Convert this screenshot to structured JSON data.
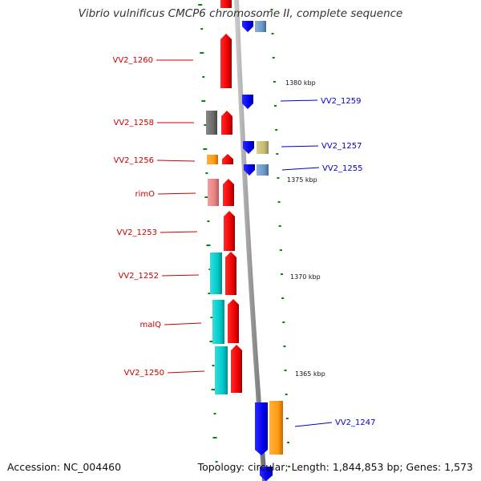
{
  "title": "Vibrio vulnificus CMCP6 chromosome II, complete sequence",
  "footer": {
    "accession": "Accession: NC_004460",
    "topology": "Topology: circular; Length: 1,844,853 bp; Genes: 1,573"
  },
  "colors": {
    "forward_label": "#cc0000",
    "reverse_label": "#0000cc",
    "tick": "#008800",
    "backbone": "#999999"
  },
  "kbp_labels": [
    "1380 kbp",
    "1375 kbp",
    "1370 kbp",
    "1365 kbp"
  ],
  "genes_left": [
    {
      "label": "VV2_1260",
      "color": "red"
    },
    {
      "label": "VV2_1258",
      "color": "red"
    },
    {
      "label": "VV2_1256",
      "color": "red"
    },
    {
      "label": "rimO",
      "color": "red"
    },
    {
      "label": "VV2_1253",
      "color": "red"
    },
    {
      "label": "VV2_1252",
      "color": "red"
    },
    {
      "label": "malQ",
      "color": "red"
    },
    {
      "label": "VV2_1250",
      "color": "red"
    }
  ],
  "genes_right": [
    {
      "label": "VV2_1259",
      "color": "blue"
    },
    {
      "label": "VV2_1257",
      "color": "blue"
    },
    {
      "label": "VV2_1255",
      "color": "blue"
    },
    {
      "label": "VV2_1247",
      "color": "blue"
    }
  ]
}
